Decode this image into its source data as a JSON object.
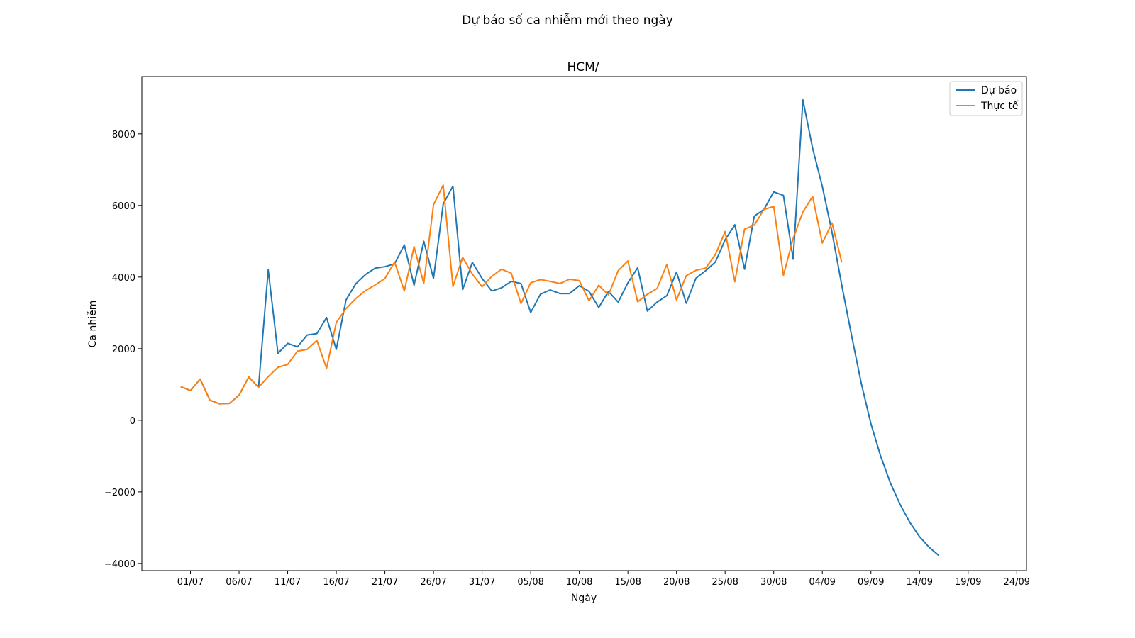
{
  "figure": {
    "suptitle": "Dự báo số ca nhiễm mới theo ngày"
  },
  "chart_data": {
    "type": "line",
    "title": "HCM/",
    "xlabel": "Ngày",
    "ylabel": "Ca nhiễm",
    "x_start": "2021-06-30",
    "xlim": [
      "2021-06-26",
      "2021-09-25"
    ],
    "ylim": [
      -4200,
      9600
    ],
    "grid": false,
    "legend_position": "top-right",
    "x_ticks": [
      "01/07",
      "06/07",
      "11/07",
      "16/07",
      "21/07",
      "26/07",
      "31/07",
      "05/08",
      "10/08",
      "15/08",
      "20/08",
      "25/08",
      "30/08",
      "04/09",
      "09/09",
      "14/09",
      "19/09",
      "24/09"
    ],
    "x_tick_dates": [
      "2021-07-01",
      "2021-07-06",
      "2021-07-11",
      "2021-07-16",
      "2021-07-21",
      "2021-07-26",
      "2021-07-31",
      "2021-08-05",
      "2021-08-10",
      "2021-08-15",
      "2021-08-20",
      "2021-08-25",
      "2021-08-30",
      "2021-09-04",
      "2021-09-09",
      "2021-09-14",
      "2021-09-19",
      "2021-09-24"
    ],
    "y_ticks": [
      8000,
      6000,
      4000,
      2000,
      0,
      -2000,
      -4000
    ],
    "y_tick_labels": [
      "8000",
      "6000",
      "4000",
      "2000",
      "0",
      "−2000",
      "−4000"
    ],
    "series": [
      {
        "name": "Dự báo",
        "color": "#1f77b4",
        "values": [
          940,
          830,
          1150,
          560,
          460,
          470,
          700,
          1210,
          920,
          4200,
          1870,
          2150,
          2050,
          2380,
          2420,
          2870,
          1980,
          3360,
          3810,
          4070,
          4250,
          4290,
          4370,
          4900,
          3770,
          5000,
          3960,
          6040,
          6540,
          3650,
          4410,
          3960,
          3610,
          3700,
          3880,
          3820,
          3010,
          3520,
          3640,
          3540,
          3540,
          3760,
          3600,
          3150,
          3600,
          3300,
          3840,
          4260,
          3050,
          3300,
          3480,
          4140,
          3270,
          3970,
          4180,
          4420,
          5040,
          5460,
          4220,
          5700,
          5890,
          6380,
          6280,
          4500,
          8950,
          7600,
          6530,
          5250,
          3770,
          2380,
          1040,
          -100,
          -1000,
          -1750,
          -2350,
          -2850,
          -3250,
          -3550,
          -3780
        ]
      },
      {
        "name": "Thực tế",
        "color": "#ff7f0e",
        "values": [
          940,
          830,
          1150,
          560,
          460,
          470,
          700,
          1210,
          920,
          1220,
          1480,
          1560,
          1930,
          1980,
          2230,
          1450,
          2730,
          3120,
          3400,
          3620,
          3780,
          3960,
          4420,
          3610,
          4850,
          3820,
          6020,
          6570,
          3740,
          4550,
          4080,
          3730,
          4020,
          4220,
          4110,
          3260,
          3840,
          3930,
          3880,
          3820,
          3940,
          3900,
          3340,
          3770,
          3500,
          4180,
          4450,
          3310,
          3520,
          3680,
          4350,
          3360,
          4040,
          4190,
          4250,
          4630,
          5270,
          3870,
          5340,
          5450,
          5890,
          5970,
          4050,
          5080,
          5820,
          6250,
          4950,
          5510,
          4410
        ]
      }
    ]
  }
}
